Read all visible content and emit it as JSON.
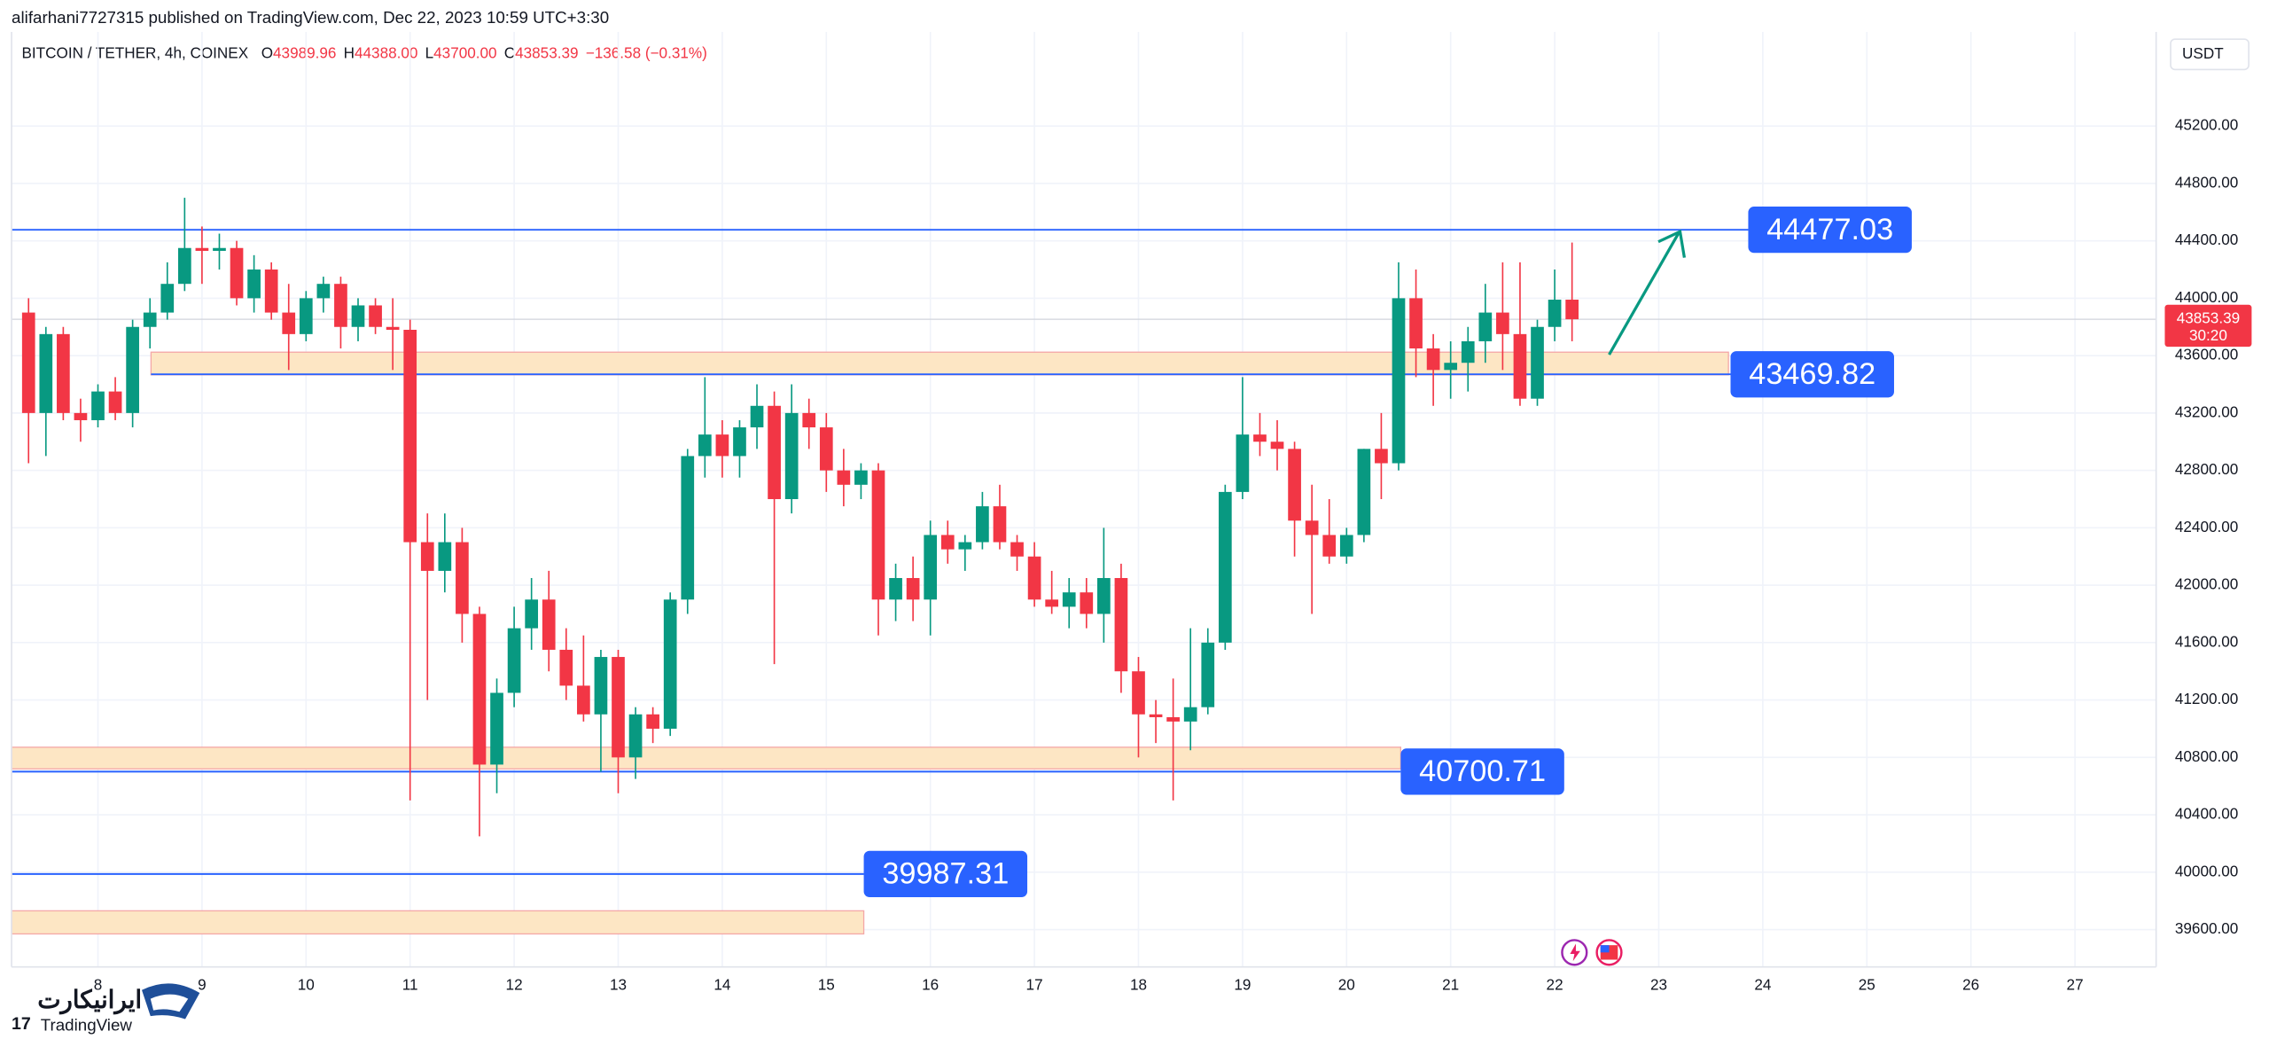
{
  "published": "alifarhani7727315 published on TradingView.com, Dec 22, 2023 10:59 UTC+3:30",
  "chart_data": {
    "type": "candlestick",
    "title": "BITCOIN / TETHER, 4h, COINEX",
    "legend_ohlc": [
      {
        "key": "O",
        "value": "43989.96"
      },
      {
        "key": "H",
        "value": "44388.00"
      },
      {
        "key": "L",
        "value": "43700.00"
      },
      {
        "key": "C",
        "value": "43853.39"
      }
    ],
    "change": "−136.58 (−0.31%)",
    "currency": "USDT",
    "countdown": "30:20",
    "up_color": "#089981",
    "down_color": "#f23645",
    "x": [
      7.3333,
      7.5,
      7.6667,
      7.8333,
      8,
      8.1667,
      8.3333,
      8.5,
      8.6667,
      8.8333,
      9,
      9.1667,
      9.3333,
      9.5,
      9.6667,
      9.8333,
      10,
      10.1667,
      10.3333,
      10.5,
      10.6667,
      10.8333,
      11,
      11.1667,
      11.3333,
      11.5,
      11.6667,
      11.8333,
      12,
      12.1667,
      12.3333,
      12.5,
      12.6667,
      12.8333,
      13,
      13.1667,
      13.3333,
      13.5,
      13.6667,
      13.8333,
      14,
      14.1667,
      14.3333,
      14.5,
      14.6667,
      14.8333,
      15,
      15.1667,
      15.3333,
      15.5,
      15.6667,
      15.8333,
      16,
      16.1667,
      16.3333,
      16.5,
      16.6667,
      16.8333,
      17,
      17.1667,
      17.3333,
      17.5,
      17.6667,
      17.8333,
      18,
      18.1667,
      18.3333,
      18.5,
      18.6667,
      18.8333,
      19,
      19.1667,
      19.3333,
      19.5,
      19.6667,
      19.8333,
      20,
      20.1667,
      20.3333,
      20.5,
      20.6667,
      20.8333,
      21,
      21.1667,
      21.3333,
      21.5,
      21.6667,
      21.8333,
      22,
      22.1667
    ],
    "open": [
      43900,
      43200,
      43750,
      43200,
      43150,
      43350,
      43200,
      43800,
      43900,
      44100,
      44350,
      44330,
      44350,
      44000,
      44200,
      43900,
      43750,
      44000,
      44100,
      43800,
      43950,
      43800,
      43780,
      42300,
      42100,
      42300,
      41800,
      40750,
      41250,
      41700,
      41900,
      41550,
      41300,
      41100,
      41500,
      40800,
      41100,
      41000,
      41900,
      42900,
      43050,
      42900,
      43100,
      43250,
      42600,
      43200,
      43100,
      42800,
      42700,
      42800,
      41900,
      42050,
      41900,
      42350,
      42250,
      42300,
      42550,
      42300,
      42200,
      41900,
      41850,
      41950,
      41800,
      42050,
      41400,
      41100,
      41080,
      41050,
      41150,
      41600,
      42650,
      43050,
      43000,
      42950,
      42450,
      42350,
      42200,
      42350,
      42950,
      42850,
      44000,
      43650,
      43500,
      43550,
      43700,
      43900,
      43750,
      43300,
      43800,
      43989.96
    ],
    "high": [
      44000,
      43800,
      43800,
      43300,
      43400,
      43450,
      43850,
      44000,
      44250,
      44700,
      44500,
      44450,
      44400,
      44300,
      44250,
      44100,
      44050,
      44150,
      44150,
      44000,
      44000,
      44000,
      43850,
      42500,
      42500,
      42400,
      41850,
      41350,
      41850,
      42050,
      42100,
      41700,
      41650,
      41550,
      41550,
      41150,
      41150,
      41950,
      42950,
      43450,
      43150,
      43150,
      43400,
      43350,
      43400,
      43300,
      43200,
      42950,
      42850,
      42850,
      42150,
      42200,
      42450,
      42450,
      42350,
      42650,
      42700,
      42350,
      42300,
      42100,
      42050,
      42050,
      42400,
      42150,
      41500,
      41200,
      41350,
      41700,
      41700,
      42700,
      43450,
      43200,
      43150,
      43000,
      42700,
      42600,
      42400,
      42950,
      43200,
      44250,
      44200,
      43750,
      43700,
      43800,
      44100,
      44250,
      44250,
      43850,
      44200,
      44388
    ],
    "low": [
      42850,
      42900,
      43150,
      43000,
      43100,
      43150,
      43100,
      43650,
      43850,
      44050,
      44100,
      44200,
      43950,
      43900,
      43850,
      43500,
      43700,
      43900,
      43650,
      43700,
      43750,
      43500,
      40500,
      41200,
      41950,
      41600,
      40250,
      40550,
      41150,
      41550,
      41400,
      41200,
      41050,
      40700,
      40550,
      40650,
      40900,
      40950,
      41800,
      42750,
      42750,
      42750,
      42950,
      41450,
      42500,
      42950,
      42650,
      42550,
      42600,
      41650,
      41750,
      41750,
      41650,
      42150,
      42100,
      42250,
      42250,
      42100,
      41850,
      41800,
      41700,
      41700,
      41600,
      41250,
      40800,
      40900,
      40500,
      40850,
      41100,
      41550,
      42600,
      42900,
      42800,
      42200,
      41800,
      42150,
      42150,
      42300,
      42600,
      42800,
      43450,
      43250,
      43300,
      43350,
      43550,
      43500,
      43250,
      43250,
      43700,
      43700
    ],
    "close": [
      43200,
      43750,
      43200,
      43150,
      43350,
      43200,
      43800,
      43900,
      44100,
      44350,
      44330,
      44350,
      44000,
      44200,
      43900,
      43750,
      44000,
      44100,
      43800,
      43950,
      43800,
      43780,
      42300,
      42100,
      42300,
      41800,
      40750,
      41250,
      41700,
      41900,
      41550,
      41300,
      41100,
      41500,
      40800,
      41100,
      41000,
      41900,
      42900,
      43050,
      42900,
      43100,
      43250,
      42600,
      43200,
      43100,
      42800,
      42700,
      42800,
      41900,
      42050,
      41900,
      42350,
      42250,
      42300,
      42550,
      42300,
      42200,
      41900,
      41850,
      41950,
      41800,
      42050,
      41400,
      41100,
      41080,
      41050,
      41150,
      41600,
      42650,
      43050,
      43000,
      42950,
      42450,
      42350,
      42200,
      42350,
      42950,
      42850,
      44000,
      43650,
      43500,
      43550,
      43700,
      43900,
      43750,
      43300,
      43800,
      43989.96,
      43853.39
    ],
    "xlim": [
      7.17,
      27.78
    ],
    "xticks": [
      8,
      9,
      10,
      11,
      12,
      13,
      14,
      15,
      16,
      17,
      18,
      19,
      20,
      21,
      22,
      23,
      24,
      25,
      26,
      27
    ],
    "ylim": [
      39340,
      45856
    ],
    "yticks": [
      {
        "value": 39600,
        "label": "39600.00"
      },
      {
        "value": 40000,
        "label": "40000.00"
      },
      {
        "value": 40400,
        "label": "40400.00"
      },
      {
        "value": 40800,
        "label": "40800.00"
      },
      {
        "value": 41200,
        "label": "41200.00"
      },
      {
        "value": 41600,
        "label": "41600.00"
      },
      {
        "value": 42000,
        "label": "42000.00"
      },
      {
        "value": 42400,
        "label": "42400.00"
      },
      {
        "value": 42800,
        "label": "42800.00"
      },
      {
        "value": 43200,
        "label": "43200.00"
      },
      {
        "value": 43600,
        "label": "43600.00"
      },
      {
        "value": 44000,
        "label": "44000.00"
      },
      {
        "value": 44400,
        "label": "44400.00"
      },
      {
        "value": 44800,
        "label": "44800.00"
      },
      {
        "value": 45200,
        "label": "45200.00"
      }
    ],
    "grid": true,
    "level_color": "#2962ff",
    "levels": [
      {
        "value": 44477.03,
        "xstart": 7.17,
        "xend": 23.86
      },
      {
        "value": 43469.82,
        "xstart": 8.51,
        "xend": 23.69
      },
      {
        "value": 40700.71,
        "xstart": 7.17,
        "xend": 20.52
      },
      {
        "value": 39987.31,
        "xstart": 7.17,
        "xend": 15.36
      }
    ],
    "zones": [
      {
        "from": 43466,
        "to": 43624,
        "xstart": 8.51,
        "xend": 23.67
      },
      {
        "from": 40720,
        "to": 40871,
        "xstart": 7.17,
        "xend": 20.52
      },
      {
        "from": 39570,
        "to": 39731,
        "xstart": 7.17,
        "xend": 15.36
      }
    ]
  },
  "watermark": {
    "brand": "ایرانیکارت",
    "sub": "TradingView"
  }
}
